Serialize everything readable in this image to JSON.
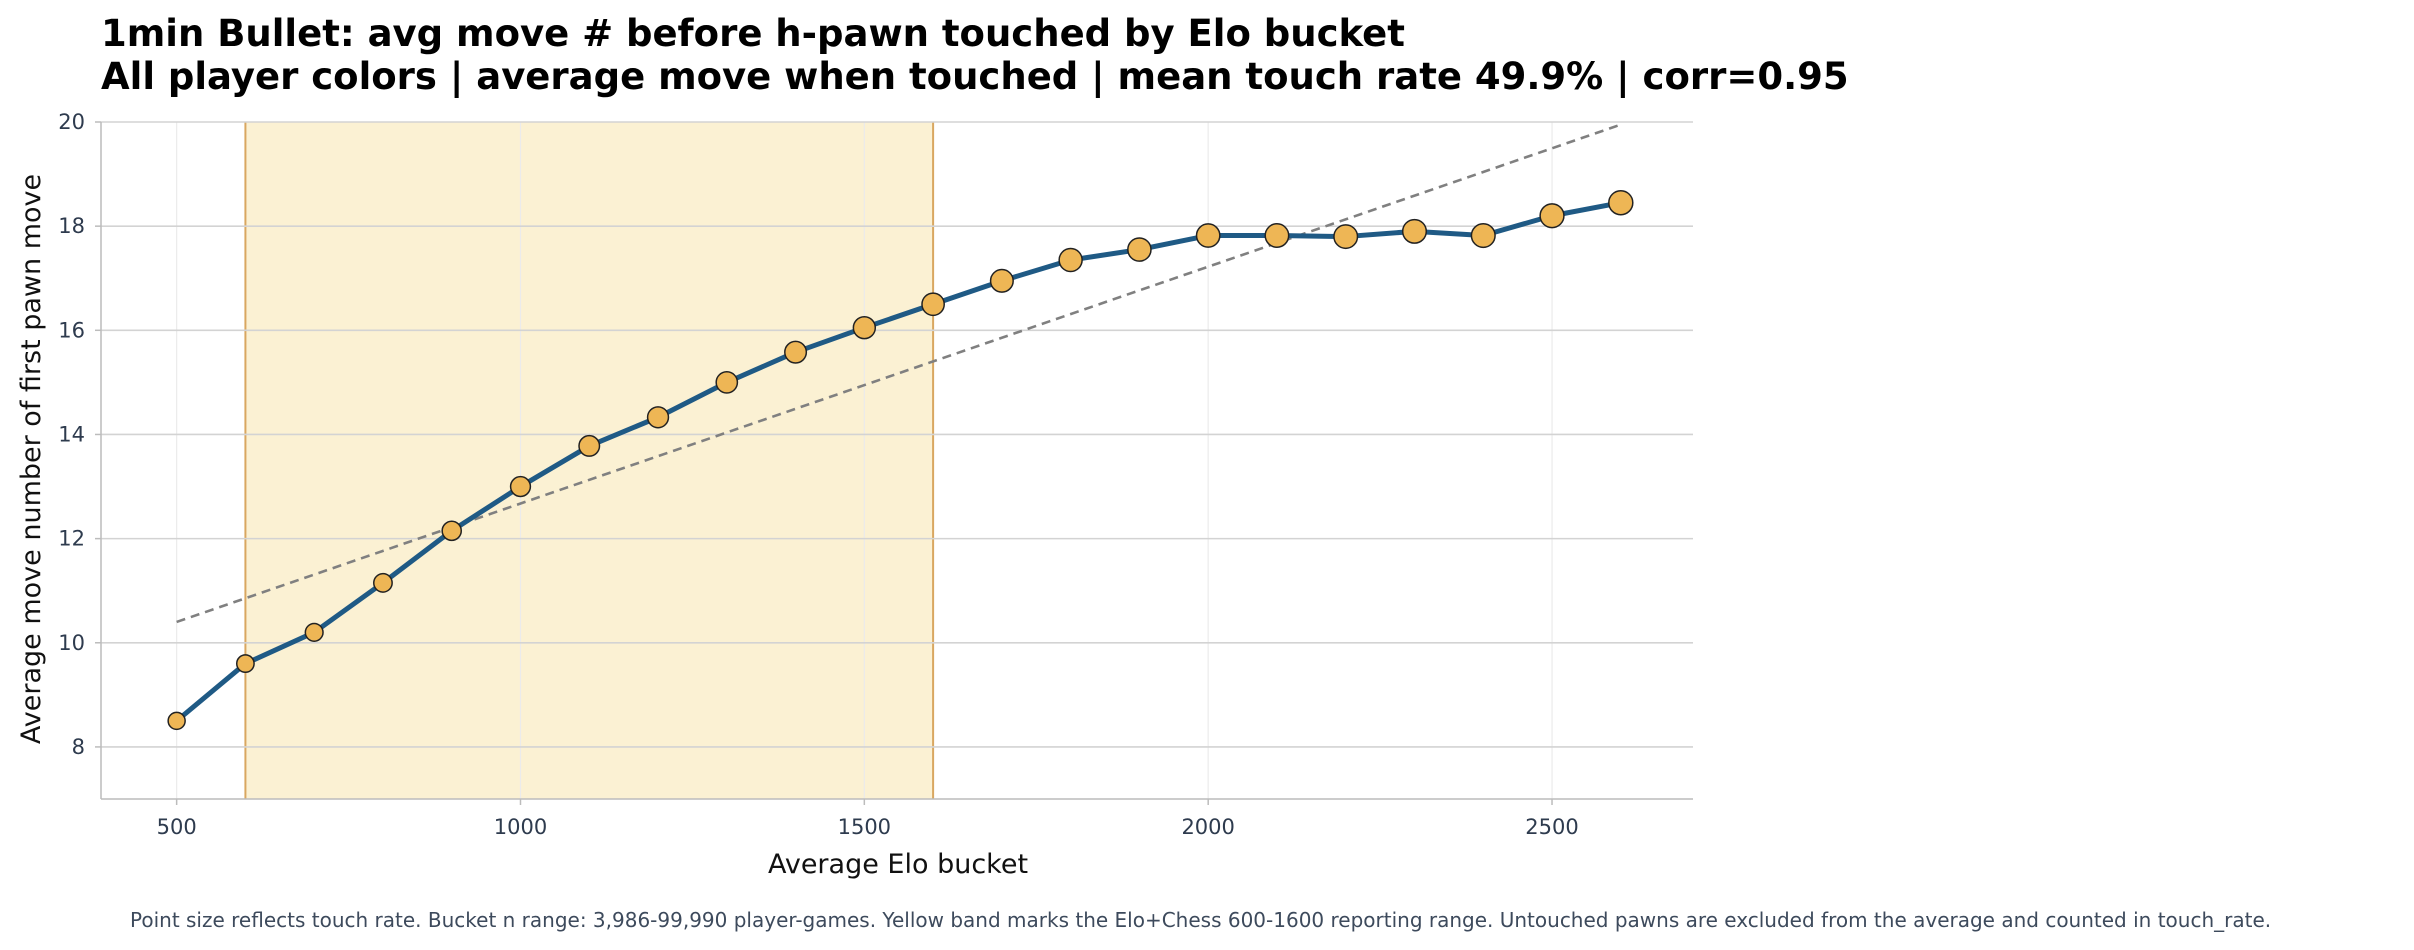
{
  "chart_data": {
    "type": "line",
    "title": "1min Bullet: avg move # before h-pawn touched by Elo bucket",
    "subtitle": "All player colors | average move when touched | mean touch rate 49.9% | corr=0.95",
    "xlabel": "Average Elo bucket",
    "ylabel": "Average move number of first pawn move",
    "xlim": [
      390,
      2705
    ],
    "ylim": [
      7,
      20
    ],
    "xticks": [
      500,
      1000,
      1500,
      2000,
      2500
    ],
    "yticks": [
      8,
      10,
      12,
      14,
      16,
      18,
      20
    ],
    "grid": true,
    "highlight_band": {
      "x_start": 600,
      "x_end": 1600,
      "color": "#fbf1d3",
      "edge_color": "#d9a760"
    },
    "series": [
      {
        "x": [
          500,
          600,
          700,
          800,
          900,
          1000,
          1100,
          1200,
          1300,
          1400,
          1500,
          1600,
          1700,
          1800,
          1900,
          2000,
          2100,
          2200,
          2300,
          2400,
          2500,
          2600
        ],
        "values": [
          8.5,
          9.6,
          10.2,
          11.15,
          12.15,
          13.0,
          13.78,
          14.33,
          15.0,
          15.58,
          16.05,
          16.5,
          16.95,
          17.35,
          17.55,
          17.82,
          17.82,
          17.8,
          17.9,
          17.82,
          18.2,
          18.45
        ],
        "touch_rate_rank": [
          0.0,
          0.05,
          0.1,
          0.2,
          0.3,
          0.4,
          0.5,
          0.55,
          0.6,
          0.65,
          0.7,
          0.75,
          0.8,
          0.85,
          0.88,
          0.9,
          0.92,
          0.93,
          0.94,
          0.95,
          0.97,
          1.0
        ],
        "line_color": "#1f5a85",
        "marker_color": "#eeb655"
      }
    ],
    "trendline": {
      "x": [
        500,
        2600
      ],
      "values": [
        10.4,
        19.95
      ],
      "color": "#808080",
      "style": "dashed"
    }
  },
  "caption": "Point size reflects touch rate. Bucket n range: 3,986-99,990 player-games. Yellow band marks the Elo+Chess 600-1600 reporting range. Untouched pawns are excluded from the average and counted in touch_rate."
}
